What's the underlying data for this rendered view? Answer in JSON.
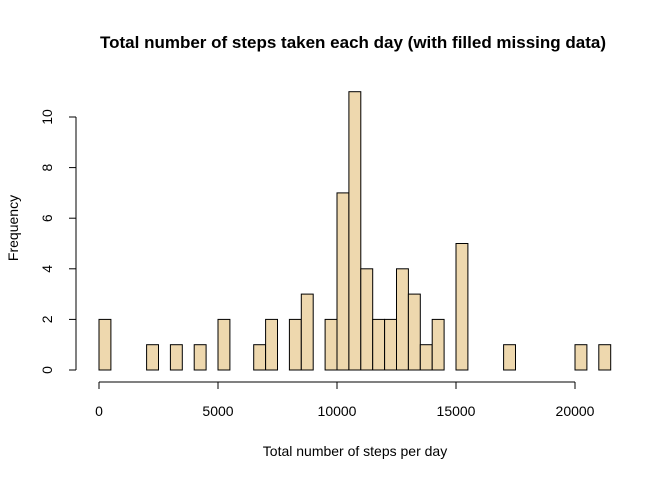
{
  "chart_data": {
    "type": "bar",
    "title": "Total number of steps taken each day (with filled missing data)",
    "xlabel": "Total number of steps per day",
    "ylabel": "Frequency",
    "bin_width": 500,
    "bins_start": [
      0,
      500,
      1000,
      1500,
      2000,
      2500,
      3000,
      3500,
      4000,
      4500,
      5000,
      5500,
      6000,
      6500,
      7000,
      7500,
      8000,
      8500,
      9000,
      9500,
      10000,
      10500,
      11000,
      11500,
      12000,
      12500,
      13000,
      13500,
      14000,
      14500,
      15000,
      15500,
      16000,
      16500,
      17000,
      17500,
      18000,
      18500,
      19000,
      19500,
      20000,
      20500,
      21000
    ],
    "values": [
      2,
      0,
      0,
      0,
      1,
      0,
      1,
      0,
      1,
      0,
      2,
      0,
      0,
      1,
      2,
      0,
      2,
      3,
      0,
      2,
      7,
      11,
      4,
      2,
      2,
      4,
      3,
      1,
      2,
      0,
      5,
      0,
      0,
      0,
      1,
      0,
      0,
      0,
      0,
      0,
      1,
      0,
      1
    ],
    "xlim": [
      0,
      21500
    ],
    "ylim": [
      0,
      11
    ],
    "x_ticks": [
      0,
      5000,
      10000,
      15000,
      20000
    ],
    "y_ticks": [
      0,
      2,
      4,
      6,
      8,
      10
    ],
    "bar_color": "#EED8AE",
    "grid": false,
    "legend": "none"
  }
}
